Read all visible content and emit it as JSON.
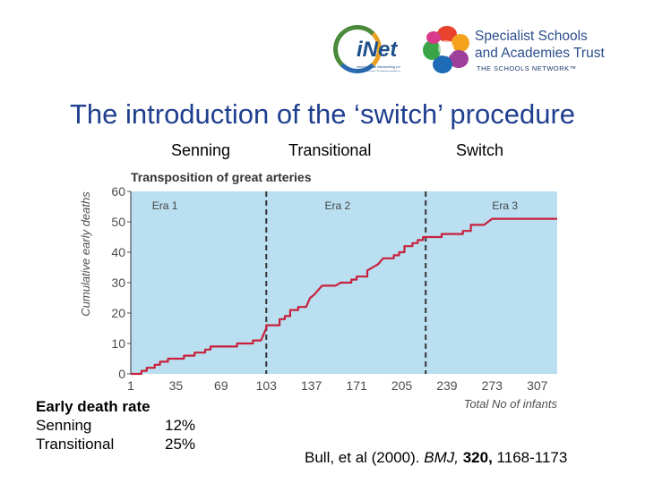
{
  "logos": {
    "inet": {
      "name": "iNet",
      "tagline": "International Networking for Educational Transformation"
    },
    "ssat": {
      "line1": "Specialist Schools",
      "line2": "and Academies Trust",
      "line3": "THE SCHOOLS NETWORK™"
    }
  },
  "title": "The introduction of the ‘switch’ procedure",
  "era_headers": [
    "Senning",
    "Transitional",
    "Switch"
  ],
  "chart_data": {
    "type": "line",
    "title": "Transposition of great arteries",
    "xlabel": "Total No of infants",
    "ylabel": "Cumulative early deaths",
    "xlim": [
      1,
      322
    ],
    "ylim": [
      0,
      60
    ],
    "xticks": [
      1,
      35,
      69,
      103,
      137,
      171,
      205,
      239,
      273,
      307
    ],
    "yticks": [
      0,
      10,
      20,
      30,
      40,
      50,
      60
    ],
    "grid": false,
    "legend": "none",
    "colors": {
      "plot_bg": "#b9dff0",
      "line": "#c8203c",
      "axis_text": "#4d4d4d"
    },
    "eras": [
      {
        "label": "Era 1",
        "x": 17
      },
      {
        "label": "Era 2",
        "x": 147
      },
      {
        "label": "Era 3",
        "x": 273
      }
    ],
    "era_boundaries": [
      103,
      223
    ],
    "series": [
      {
        "points": [
          [
            1,
            0
          ],
          [
            9,
            0
          ],
          [
            9,
            1
          ],
          [
            13,
            1
          ],
          [
            13,
            2
          ],
          [
            19,
            2
          ],
          [
            19,
            3
          ],
          [
            23,
            3
          ],
          [
            23,
            4
          ],
          [
            29,
            4
          ],
          [
            29,
            5
          ],
          [
            41,
            5
          ],
          [
            41,
            6
          ],
          [
            49,
            6
          ],
          [
            49,
            7
          ],
          [
            57,
            7
          ],
          [
            57,
            8
          ],
          [
            61,
            8
          ],
          [
            61,
            9
          ],
          [
            81,
            9
          ],
          [
            81,
            10
          ],
          [
            93,
            10
          ],
          [
            93,
            11
          ],
          [
            99,
            11
          ],
          [
            103,
            15
          ],
          [
            103,
            16
          ],
          [
            113,
            16
          ],
          [
            113,
            18
          ],
          [
            117,
            18
          ],
          [
            117,
            19
          ],
          [
            121,
            19
          ],
          [
            121,
            21
          ],
          [
            127,
            21
          ],
          [
            127,
            22
          ],
          [
            133,
            22
          ],
          [
            136,
            25
          ],
          [
            139,
            26
          ],
          [
            141,
            27
          ],
          [
            145,
            29
          ],
          [
            155,
            29
          ],
          [
            159,
            30
          ],
          [
            167,
            30
          ],
          [
            167,
            31
          ],
          [
            171,
            31
          ],
          [
            171,
            32
          ],
          [
            179,
            32
          ],
          [
            179,
            34
          ],
          [
            187,
            36
          ],
          [
            191,
            38
          ],
          [
            199,
            38
          ],
          [
            199,
            39
          ],
          [
            203,
            39
          ],
          [
            203,
            40
          ],
          [
            207,
            40
          ],
          [
            207,
            42
          ],
          [
            213,
            42
          ],
          [
            213,
            43
          ],
          [
            217,
            43
          ],
          [
            217,
            44
          ],
          [
            221,
            44
          ],
          [
            221,
            45
          ],
          [
            235,
            45
          ],
          [
            235,
            46
          ],
          [
            251,
            46
          ],
          [
            251,
            47
          ],
          [
            257,
            47
          ],
          [
            257,
            49
          ],
          [
            267,
            49
          ],
          [
            273,
            51
          ],
          [
            322,
            51
          ]
        ]
      }
    ]
  },
  "early_death_rate": {
    "heading": "Early death rate",
    "rows": [
      {
        "label": "Senning",
        "value": "12%"
      },
      {
        "label": "Transitional",
        "value": "25%"
      }
    ]
  },
  "citation": {
    "authors": "Bull, et al (2000).",
    "journal": "BMJ,",
    "volume": "320,",
    "pages": "1168-1173"
  }
}
